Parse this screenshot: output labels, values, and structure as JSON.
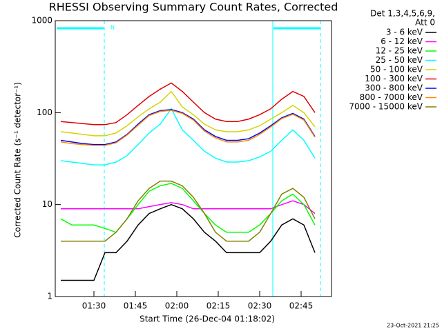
{
  "chart_data": {
    "type": "line",
    "log_y": true,
    "title": "RHESSI Observing Summary Count Rates, Corrected",
    "xlabel": "Start Time (26-Dec-04 01:18:02)",
    "ylabel": "Corrected Count Rate (s⁻¹ detector⁻¹)",
    "legend_title": [
      "Det 1,3,4,5,6,9,",
      "Att 0"
    ],
    "annotation": "N",
    "footer": "23-Oct-2021 21:25",
    "xlim": [
      "01:16",
      "02:56"
    ],
    "xticks": [
      "01:30",
      "01:45",
      "02:00",
      "02:15",
      "02:30",
      "02:45"
    ],
    "ylim": [
      1,
      1000
    ],
    "yticks": [
      1,
      10,
      100,
      1000
    ],
    "x": [
      "01:18",
      "01:22",
      "01:26",
      "01:30",
      "01:34",
      "01:38",
      "01:42",
      "01:46",
      "01:50",
      "01:54",
      "01:58",
      "02:02",
      "02:06",
      "02:10",
      "02:14",
      "02:18",
      "02:22",
      "02:26",
      "02:30",
      "02:34",
      "02:38",
      "02:42",
      "02:46",
      "02:50"
    ],
    "series": [
      {
        "name": "3 - 6 keV",
        "color": "#000000",
        "values": [
          1.5,
          1.5,
          1.5,
          1.5,
          3,
          3,
          4,
          6,
          8,
          9,
          10,
          9,
          7,
          5,
          4,
          3,
          3,
          3,
          3,
          4,
          6,
          7,
          6,
          3
        ]
      },
      {
        "name": "6 - 12 keV",
        "color": "#ff00ff",
        "values": [
          9,
          9,
          9,
          9,
          9,
          9,
          9,
          9,
          9.5,
          10,
          10.5,
          10,
          9,
          9,
          9,
          9,
          9,
          9,
          9,
          9,
          10,
          11,
          10,
          8
        ]
      },
      {
        "name": "12 - 25 keV",
        "color": "#00ff00",
        "values": [
          7,
          6,
          6,
          6,
          5.5,
          5,
          7,
          10,
          14,
          16,
          17,
          15,
          11,
          8,
          6,
          5,
          5,
          5,
          6,
          8,
          11,
          13,
          10,
          6
        ]
      },
      {
        "name": "25 - 50 keV",
        "color": "#00ffff",
        "values": [
          30,
          29,
          28,
          27,
          27,
          29,
          34,
          45,
          60,
          75,
          110,
          65,
          50,
          38,
          32,
          29,
          29,
          30,
          33,
          38,
          50,
          65,
          50,
          32
        ]
      },
      {
        "name": "50 - 100 keV",
        "color": "#d4d400",
        "values": [
          62,
          60,
          58,
          56,
          56,
          60,
          72,
          90,
          110,
          130,
          170,
          115,
          95,
          75,
          65,
          62,
          62,
          65,
          72,
          85,
          100,
          120,
          100,
          70
        ]
      },
      {
        "name": "100 - 300 keV",
        "color": "#e00000",
        "values": [
          80,
          78,
          76,
          74,
          74,
          78,
          95,
          120,
          150,
          180,
          210,
          170,
          130,
          100,
          85,
          80,
          80,
          85,
          95,
          110,
          140,
          170,
          150,
          100
        ]
      },
      {
        "name": "300 - 800 keV",
        "color": "#0000ff",
        "values": [
          50,
          48,
          46,
          45,
          45,
          48,
          58,
          75,
          95,
          105,
          108,
          100,
          85,
          65,
          55,
          50,
          50,
          52,
          60,
          72,
          88,
          98,
          85,
          55
        ]
      },
      {
        "name": "800 - 7000 keV",
        "color": "#ff8c00",
        "values": [
          48,
          46,
          45,
          44,
          44,
          47,
          57,
          73,
          93,
          103,
          106,
          98,
          83,
          63,
          53,
          48,
          48,
          50,
          58,
          70,
          86,
          96,
          83,
          54
        ]
      },
      {
        "name": "7000 - 15000 keV",
        "color": "#808000",
        "values": [
          4,
          4,
          4,
          4,
          4,
          5,
          7,
          11,
          15,
          18,
          18,
          16,
          12,
          8,
          5,
          4,
          4,
          4,
          5,
          8,
          13,
          15,
          12,
          7
        ]
      }
    ]
  }
}
